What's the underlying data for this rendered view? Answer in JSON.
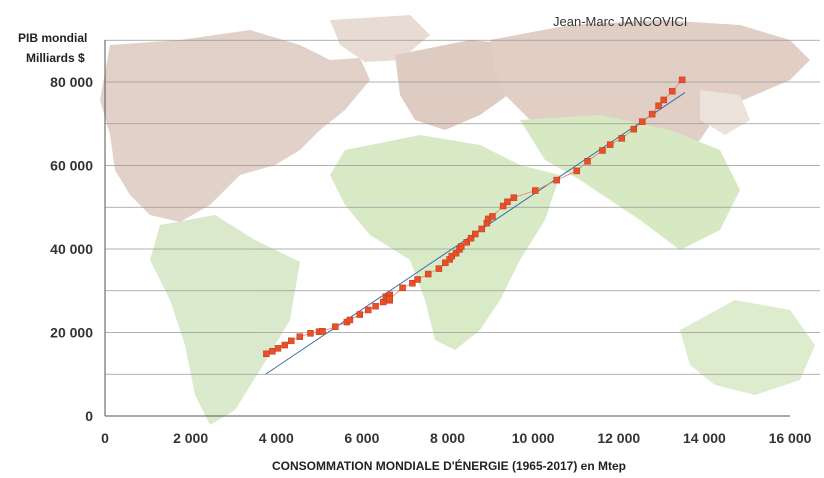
{
  "chart_data": {
    "type": "scatter",
    "author": "Jean-Marc JANCOVICI",
    "ylabel_line1": "PIB mondial",
    "ylabel_line2": "Milliards $",
    "xlabel": "CONSOMMATION MONDIALE D'ÉNERGIE (1965-2017)  en Mtep",
    "xlim": [
      0,
      16000
    ],
    "ylim": [
      0,
      80000
    ],
    "x_ticks": [
      "0",
      "2 000",
      "4 000",
      "6 000",
      "8 000",
      "10 000",
      "12 000",
      "14 000",
      "16 000"
    ],
    "y_ticks": [
      "0",
      "20 000",
      "40 000",
      "60 000",
      "80 000"
    ],
    "grid": true,
    "colors": {
      "points": "#e8502a",
      "trend": "#3b6fa8",
      "grid": "#999999",
      "map_land_a": "#d9c3b8",
      "map_land_b": "#cfe6b8"
    },
    "series": [
      {
        "x": [
          3770,
          3910,
          4040,
          4200,
          4350,
          4550,
          4800,
          5000,
          5080,
          5380,
          5650,
          5720,
          5950,
          6150,
          6320,
          6500,
          6560,
          6650,
          6590,
          6650,
          6650,
          6950,
          7180,
          7300,
          7550,
          7800,
          7950,
          8050,
          8100,
          8200,
          8280,
          8320,
          8450,
          8550,
          8650,
          8800,
          8920,
          8950,
          9050,
          9300,
          9400,
          9550,
          10050,
          10550,
          11020,
          11270,
          11620,
          11800,
          12070,
          12350,
          12550,
          12780,
          12930,
          13050,
          13250,
          13480
        ],
        "y": [
          14900,
          15500,
          16200,
          17000,
          18000,
          19000,
          19800,
          20200,
          20300,
          21400,
          22500,
          23000,
          24300,
          25400,
          26300,
          27300,
          28600,
          29000,
          28200,
          27700,
          28000,
          30700,
          31800,
          32700,
          34000,
          35300,
          36700,
          37500,
          38300,
          39000,
          39900,
          40600,
          41600,
          42600,
          43600,
          44800,
          46200,
          47200,
          47800,
          50300,
          51300,
          52300,
          54000,
          56500,
          58700,
          61000,
          63600,
          65000,
          66500,
          68700,
          70500,
          72300,
          74300,
          75700,
          77800,
          80500
        ]
      }
    ],
    "trendline": {
      "x": [
        3750,
        13550
      ],
      "y": [
        10000,
        77500
      ]
    }
  }
}
